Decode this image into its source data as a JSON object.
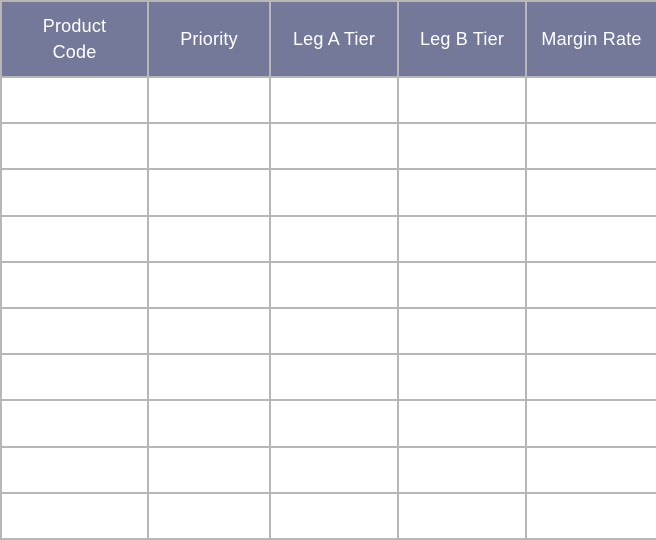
{
  "table": {
    "columns": [
      {
        "label": "Product\nCode"
      },
      {
        "label": "Priority"
      },
      {
        "label": "Leg A Tier"
      },
      {
        "label": "Leg B Tier"
      },
      {
        "label": "Margin Rate"
      }
    ],
    "rows": [
      [
        "",
        "",
        "",
        "",
        ""
      ],
      [
        "",
        "",
        "",
        "",
        ""
      ],
      [
        "",
        "",
        "",
        "",
        ""
      ],
      [
        "",
        "",
        "",
        "",
        ""
      ],
      [
        "",
        "",
        "",
        "",
        ""
      ],
      [
        "",
        "",
        "",
        "",
        ""
      ],
      [
        "",
        "",
        "",
        "",
        ""
      ],
      [
        "",
        "",
        "",
        "",
        ""
      ],
      [
        "",
        "",
        "",
        "",
        ""
      ],
      [
        "",
        "",
        "",
        "",
        ""
      ]
    ]
  },
  "theme": {
    "header_bg": "#747999",
    "header_text": "#ffffff",
    "grid_line": "#b7b7b7",
    "cell_bg": "#ffffff"
  }
}
